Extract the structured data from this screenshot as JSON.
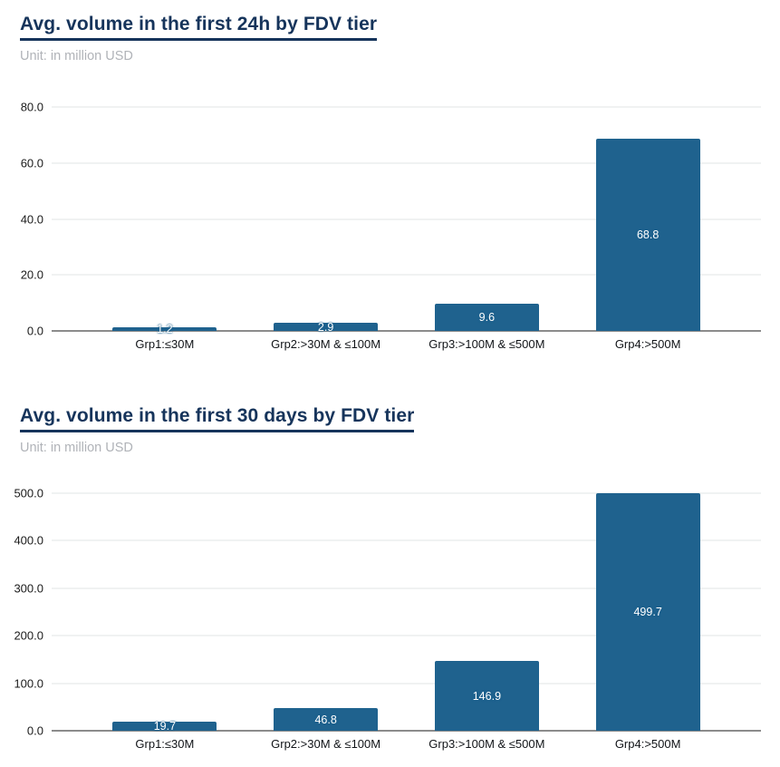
{
  "page": {
    "background": "#ffffff",
    "accent_color": "#16345b"
  },
  "chart_data": [
    {
      "type": "bar",
      "title": "Avg. volume in the first 24h by FDV tier",
      "subtitle": "Unit: in million USD",
      "categories": [
        "Grp1:≤30M",
        "Grp2:>30M & ≤100M",
        "Grp3:>100M & ≤500M",
        "Grp4:>500M"
      ],
      "values": [
        1.2,
        2.9,
        9.6,
        68.8
      ],
      "value_labels": [
        "1.2",
        "2.9",
        "9.6",
        "68.8"
      ],
      "yticks": [
        0,
        20,
        40,
        60,
        80
      ],
      "ytick_labels": [
        "0.0",
        "20.0",
        "40.0",
        "60.0",
        "80.0"
      ],
      "ylim": [
        0,
        80
      ],
      "xlabel": "",
      "ylabel": "",
      "grid": "horizontal",
      "legend": "none",
      "bar_color": "#1f628e",
      "value_label_color": "#ffffff"
    },
    {
      "type": "bar",
      "title": "Avg. volume in the first 30 days by FDV tier",
      "subtitle": "Unit: in million USD",
      "categories": [
        "Grp1:≤30M",
        "Grp2:>30M & ≤100M",
        "Grp3:>100M & ≤500M",
        "Grp4:>500M"
      ],
      "values": [
        19.7,
        46.8,
        146.9,
        499.7
      ],
      "value_labels": [
        "19.7",
        "46.8",
        "146.9",
        "499.7"
      ],
      "yticks": [
        0,
        100,
        200,
        300,
        400,
        500
      ],
      "ytick_labels": [
        "0.0",
        "100.0",
        "200.0",
        "300.0",
        "400.0",
        "500.0"
      ],
      "ylim": [
        0,
        500
      ],
      "xlabel": "",
      "ylabel": "",
      "grid": "horizontal",
      "legend": "none",
      "bar_color": "#1f628e",
      "value_label_color": "#ffffff"
    }
  ]
}
